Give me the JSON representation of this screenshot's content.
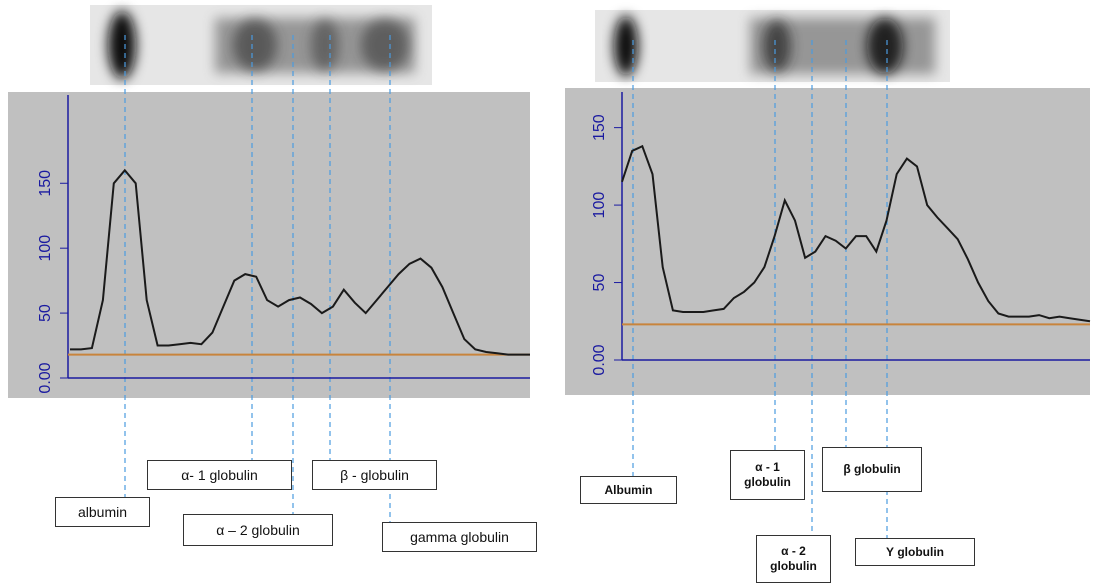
{
  "chart_data": [
    {
      "type": "line",
      "categories": [
        null,
        null,
        null,
        null,
        null,
        null,
        null,
        null,
        null,
        null,
        null,
        null,
        null,
        null,
        null,
        null,
        null,
        null,
        null,
        null,
        null,
        null,
        null,
        null,
        null,
        null,
        null,
        null,
        null,
        null,
        null,
        null,
        null,
        null,
        null,
        null,
        null,
        null,
        null,
        null,
        null,
        null,
        null
      ],
      "values": [
        22,
        22,
        23,
        60,
        150,
        160,
        150,
        60,
        25,
        25,
        26,
        27,
        26,
        35,
        55,
        75,
        80,
        78,
        60,
        55,
        60,
        62,
        57,
        50,
        55,
        68,
        58,
        50,
        60,
        70,
        80,
        88,
        92,
        85,
        70,
        50,
        30,
        22,
        20,
        19,
        18,
        18,
        18
      ],
      "color": "#1a1a1a",
      "baseline": 18,
      "baseline_color": "#c8843c",
      "ylim": [
        0,
        218
      ],
      "yticks": [
        {
          "value": 0,
          "label": "0.00"
        },
        50,
        100,
        150
      ],
      "grid": false,
      "annotations": [
        "albumin",
        "α- 1 globulin",
        "α – 2 globulin",
        "β - globulin",
        "gamma globulin"
      ]
    },
    {
      "type": "line",
      "categories": [
        null,
        null,
        null,
        null,
        null,
        null,
        null,
        null,
        null,
        null,
        null,
        null,
        null,
        null,
        null,
        null,
        null,
        null,
        null,
        null,
        null,
        null,
        null,
        null,
        null,
        null,
        null,
        null,
        null,
        null,
        null,
        null,
        null,
        null,
        null,
        null,
        null,
        null,
        null,
        null,
        null,
        null,
        null,
        null,
        null,
        null,
        null
      ],
      "values": [
        115,
        135,
        138,
        120,
        60,
        32,
        31,
        31,
        31,
        32,
        33,
        40,
        44,
        50,
        60,
        80,
        103,
        90,
        66,
        70,
        80,
        77,
        72,
        80,
        80,
        70,
        90,
        120,
        130,
        125,
        100,
        92,
        85,
        78,
        65,
        50,
        38,
        30,
        28,
        28,
        28,
        29,
        27,
        28,
        27,
        26,
        25
      ],
      "color": "#1a1a1a",
      "baseline": 23,
      "baseline_color": "#c8843c",
      "ylim": [
        0,
        173
      ],
      "yticks": [
        {
          "value": 0,
          "label": "0.00"
        },
        50,
        100,
        150
      ],
      "grid": false,
      "annotations": [
        "Albumin",
        "α - 1 globulin",
        "β globulin",
        "α - 2 globulin",
        "Υ globulin"
      ]
    }
  ]
}
